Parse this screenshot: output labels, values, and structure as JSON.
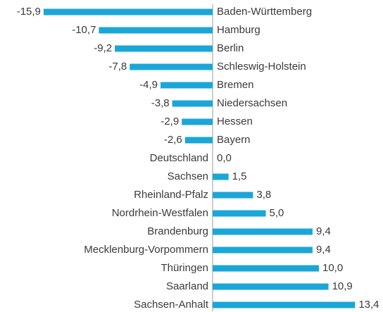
{
  "chart_data": {
    "type": "barh",
    "categories": [
      "Baden-Württemberg",
      "Hamburg",
      "Berlin",
      "Schleswig-Holstein",
      "Bremen",
      "Niedersachsen",
      "Hessen",
      "Bayern",
      "Deutschland",
      "Sachsen",
      "Rheinland-Pfalz",
      "Nordrhein-Westfalen",
      "Brandenburg",
      "Mecklenburg-Vorpommern",
      "Thüringen",
      "Saarland",
      "Sachsen-Anhalt"
    ],
    "values": [
      -15.9,
      -10.7,
      -9.2,
      -7.8,
      -4.9,
      -3.8,
      -2.9,
      -2.6,
      0.0,
      1.5,
      3.8,
      5.0,
      9.4,
      9.4,
      10.0,
      10.9,
      13.4
    ],
    "value_labels": [
      "-15,9",
      "-10,7",
      "-9,2",
      "-7,8",
      "-4,9",
      "-3,8",
      "-2,9",
      "-2,6",
      "0,0",
      "1,5",
      "3,8",
      "5,0",
      "9,4",
      "9,4",
      "10,0",
      "10,9",
      "13,4"
    ],
    "color": "#1ba6d8"
  }
}
